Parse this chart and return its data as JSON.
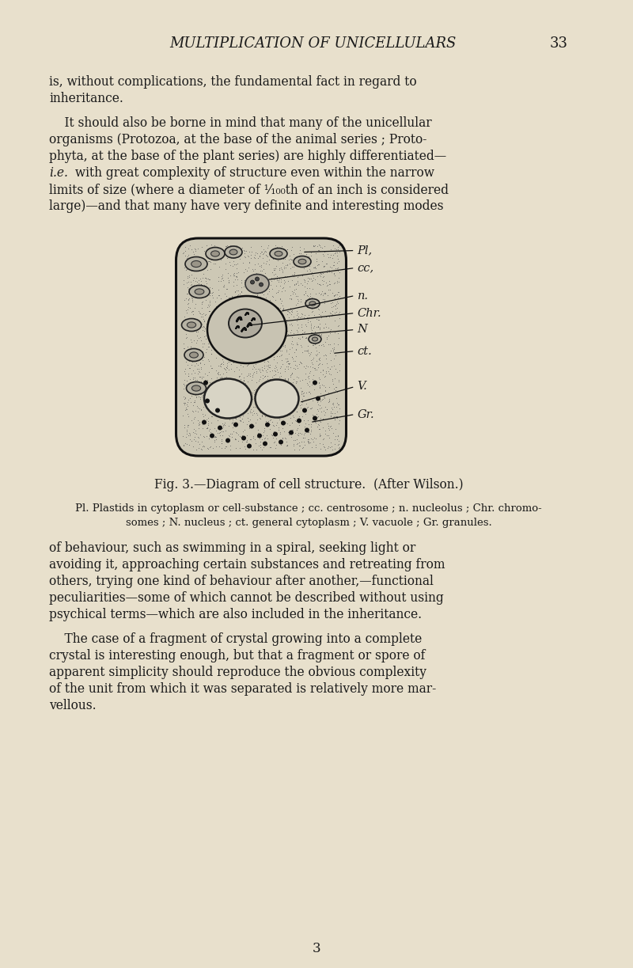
{
  "background_color": "#e8e0cc",
  "text_color": "#1a1a1a",
  "title": "MULTIPLICATION OF UNICELLULARS",
  "page_number": "33",
  "page_num_bottom": "3",
  "fig_caption": "Fig. 3.—Diagram of cell structure.  (After Wilson.)",
  "fig_legend_1": "Pl. Plastids in cytoplasm or cell-substance ; cc. centrosome ; n. nucleolus ; Chr. chromo-",
  "fig_legend_2": "somes ; N. nucleus ; ct. general cytoplasm ; V. vacuole ; Gr. granules.",
  "lines_p1": [
    "is, without complications, the fundamental fact in regard to",
    "inheritance."
  ],
  "lines_p2": [
    "    It should also be borne in mind that many of the unicellular",
    "organisms (Protozoa, at the base of the animal series ; Proto-",
    "phyta, at the base of the plant series) are highly differentiated—",
    "i.e. with great complexity of structure even within the narrow",
    "limits of size (where a diameter of ¹⁄₁₀₀th of an inch is considered",
    "large)—and that many have very definite and interesting modes"
  ],
  "lines_p3": [
    "of behaviour, such as swimming in a spiral, seeking light or",
    "avoiding it, approaching certain substances and retreating from",
    "others, trying one kind of behaviour after another,—functional",
    "peculiarities—some of which cannot be described without using",
    "psychical terms—which are also included in the inheritance."
  ],
  "lines_p4": [
    "    The case of a fragment of crystal growing into a complete",
    "crystal is interesting enough, but that a fragment or spore of",
    "apparent simplicity should reproduce the obvious complexity",
    "of the unit from which it was separated is relatively more mar-",
    "vellous."
  ]
}
